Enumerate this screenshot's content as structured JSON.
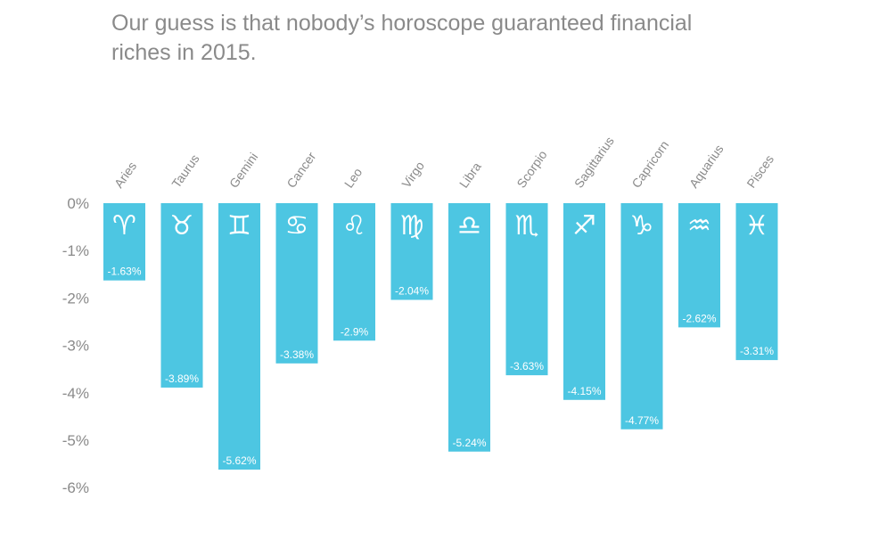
{
  "title": "Our guess is that nobody’s horoscope guaranteed financial riches in 2015.",
  "chart_data": {
    "type": "bar",
    "categories": [
      "Aries",
      "Taurus",
      "Gemini",
      "Cancer",
      "Leo",
      "Virgo",
      "Libra",
      "Scorpio",
      "Sagittarius",
      "Capricorn",
      "Aquarius",
      "Pisces"
    ],
    "values": [
      -1.63,
      -3.89,
      -5.62,
      -3.38,
      -2.9,
      -2.04,
      -5.24,
      -3.63,
      -4.15,
      -4.77,
      -2.62,
      -3.31
    ],
    "value_labels": [
      "-1.63%",
      "-3.89%",
      "-5.62%",
      "-3.38%",
      "-2.9%",
      "-2.04%",
      "-5.24%",
      "-3.63%",
      "-4.15%",
      "-4.77%",
      "-2.62%",
      "-3.31%"
    ],
    "symbols": [
      "♈",
      "♉",
      "♊",
      "♋",
      "♌",
      "♍",
      "♎",
      "♏",
      "♐",
      "♑",
      "♒",
      "♓"
    ],
    "yticks": [
      0,
      -1,
      -2,
      -3,
      -4,
      -5,
      -6
    ],
    "ytick_labels": [
      "0%",
      "-1%",
      "-2%",
      "-3%",
      "-4%",
      "-5%",
      "-6%"
    ],
    "ylim": [
      -6,
      0
    ],
    "grid": false,
    "bar_color": "#4dc6e2",
    "text_color": "#8a8a8a"
  }
}
